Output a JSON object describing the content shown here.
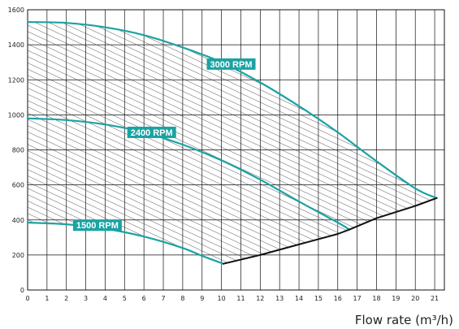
{
  "chart_data": {
    "type": "area",
    "title": "",
    "xlabel": "Flow rate (m³/h)",
    "ylabel": "",
    "xlim": [
      0,
      21.5
    ],
    "ylim": [
      0,
      1600
    ],
    "x_ticks": [
      0,
      1,
      2,
      3,
      4,
      5,
      6,
      7,
      8,
      9,
      10,
      11,
      12,
      13,
      14,
      15,
      16,
      17,
      18,
      19,
      20,
      21
    ],
    "y_ticks": [
      0,
      200,
      400,
      600,
      800,
      1000,
      1200,
      1400,
      1600
    ],
    "grid": true,
    "colors": {
      "curve": "#1aa3a3",
      "boundary": "#111111",
      "hatch": "#333333",
      "label_bg": "#1aa3a3"
    },
    "series": [
      {
        "name": "3000 RPM",
        "x": [
          0,
          2,
          4,
          6,
          8,
          10,
          12,
          14,
          16,
          18,
          20,
          21.1
        ],
        "y": [
          1530,
          1525,
          1500,
          1455,
          1385,
          1300,
          1185,
          1050,
          900,
          735,
          580,
          525
        ]
      },
      {
        "name": "2400 RPM",
        "x": [
          0,
          2,
          4,
          6,
          8,
          10,
          12,
          14,
          16,
          16.6
        ],
        "y": [
          980,
          970,
          945,
          900,
          830,
          740,
          630,
          505,
          385,
          345
        ]
      },
      {
        "name": "1500 RPM",
        "x": [
          0,
          2,
          4,
          6,
          8,
          9,
          10.1
        ],
        "y": [
          385,
          375,
          350,
          305,
          240,
          195,
          150
        ]
      },
      {
        "name": "",
        "x": [
          10.1,
          12,
          14,
          16,
          16.6,
          18,
          20,
          21.1
        ],
        "y": [
          150,
          200,
          260,
          320,
          345,
          410,
          480,
          525
        ]
      }
    ],
    "annotations": [
      {
        "text": "3000 RPM",
        "x": 10.5,
        "y": 1290
      },
      {
        "text": "2400 RPM",
        "x": 6.4,
        "y": 900
      },
      {
        "text": "1500 RPM",
        "x": 3.6,
        "y": 370
      }
    ]
  }
}
